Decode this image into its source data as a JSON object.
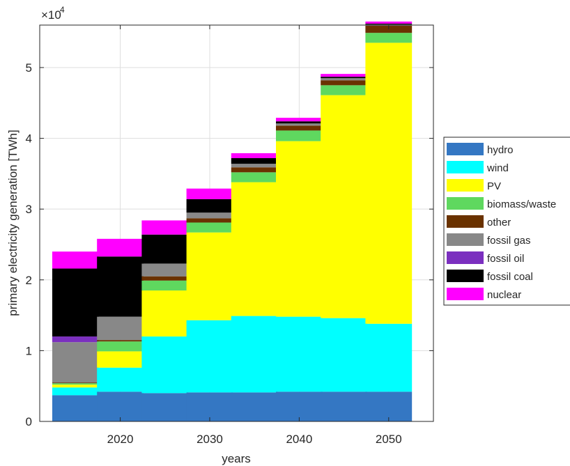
{
  "chart_data": {
    "type": "bar",
    "stacked": true,
    "xlabel": "years",
    "ylabel": "primary electricity generation [TWh]",
    "y_exponent_label": "×10",
    "y_exponent_power": "4",
    "ylim": [
      0,
      56000
    ],
    "x_tick_labels": [
      "2020",
      "2030",
      "2040",
      "2050"
    ],
    "y_tick_labels": [
      "0",
      "1",
      "2",
      "3",
      "4",
      "5"
    ],
    "y_tick_values": [
      0,
      10000,
      20000,
      30000,
      40000,
      50000
    ],
    "grid": true,
    "legend_position": "outside-right",
    "categories": [
      2015,
      2020,
      2025,
      2030,
      2035,
      2040,
      2045,
      2050
    ],
    "x_tick_values": [
      2020,
      2030,
      2040,
      2050
    ],
    "xlim": [
      2011,
      2055
    ],
    "series": [
      {
        "name": "hydro",
        "color": "#3477c3",
        "values": [
          3700,
          4200,
          4000,
          4100,
          4100,
          4200,
          4200,
          4200
        ]
      },
      {
        "name": "wind",
        "color": "#00ffff",
        "values": [
          1100,
          3400,
          8000,
          10200,
          10800,
          10600,
          10400,
          9600
        ]
      },
      {
        "name": "PV",
        "color": "#ffff00",
        "values": [
          400,
          2300,
          6500,
          12400,
          18900,
          24800,
          31500,
          39700
        ]
      },
      {
        "name": "biomass/waste",
        "color": "#5fd85f",
        "values": [
          200,
          1400,
          1400,
          1400,
          1400,
          1500,
          1400,
          1400
        ]
      },
      {
        "name": "other",
        "color": "#6a3200",
        "values": [
          100,
          200,
          600,
          600,
          700,
          700,
          700,
          1000
        ]
      },
      {
        "name": "fossil gas",
        "color": "#888888",
        "values": [
          5700,
          3300,
          1800,
          800,
          500,
          300,
          300,
          200
        ]
      },
      {
        "name": "fossil oil",
        "color": "#7b2fbf",
        "values": [
          800,
          0,
          0,
          0,
          0,
          0,
          0,
          0
        ]
      },
      {
        "name": "fossil coal",
        "color": "#000000",
        "values": [
          9600,
          8500,
          4100,
          1900,
          800,
          300,
          200,
          100
        ]
      },
      {
        "name": "nuclear",
        "color": "#ff00ff",
        "values": [
          2400,
          2500,
          2000,
          1500,
          700,
          500,
          400,
          300
        ]
      }
    ]
  }
}
